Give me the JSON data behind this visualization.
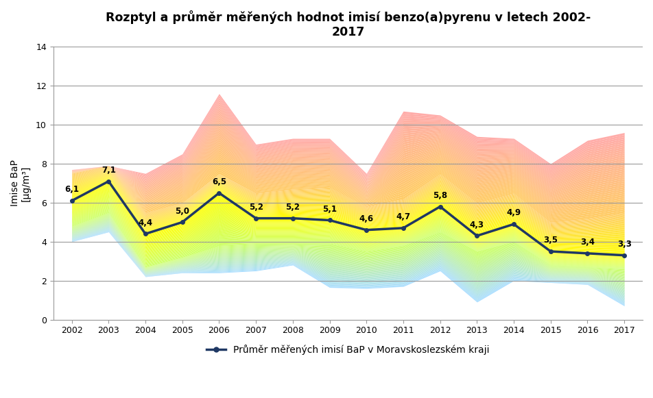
{
  "title": "Rozptyl a průměr měřených hodnot imisí benzo(a)pyrenu v letech 2002-\n2017",
  "ylabel": "Imise BaP\n[μg/m³]",
  "years": [
    2002,
    2003,
    2004,
    2005,
    2006,
    2007,
    2008,
    2009,
    2010,
    2011,
    2012,
    2013,
    2014,
    2015,
    2016,
    2017
  ],
  "mean": [
    6.1,
    7.1,
    4.4,
    5.0,
    6.5,
    5.2,
    5.2,
    5.1,
    4.6,
    4.7,
    5.8,
    4.3,
    4.9,
    3.5,
    3.4,
    3.3
  ],
  "pmin": [
    4.0,
    4.5,
    2.2,
    2.4,
    2.4,
    2.5,
    2.8,
    1.65,
    1.6,
    1.7,
    2.5,
    0.9,
    2.0,
    1.9,
    1.8,
    0.7
  ],
  "pmax": [
    7.7,
    7.9,
    7.5,
    8.5,
    11.6,
    9.0,
    9.3,
    9.3,
    7.5,
    10.7,
    10.5,
    9.4,
    9.3,
    8.0,
    9.2,
    9.6
  ],
  "p25": [
    4.8,
    5.5,
    2.7,
    3.2,
    3.8,
    3.9,
    3.9,
    3.9,
    3.5,
    3.8,
    4.5,
    3.5,
    4.0,
    2.8,
    2.7,
    2.6
  ],
  "p75": [
    7.5,
    7.9,
    5.5,
    6.0,
    7.5,
    6.5,
    6.7,
    6.8,
    5.8,
    6.2,
    7.5,
    6.0,
    6.5,
    5.0,
    5.2,
    5.5
  ],
  "mean_labels": [
    "6,1",
    "7,1",
    "4,4",
    "5,0",
    "6,5",
    "5,2",
    "5,2",
    "5,1",
    "4,6",
    "4,7",
    "5,8",
    "4,3",
    "4,9",
    "3,5",
    "3,4",
    "3,3"
  ],
  "line_color": "#1f3864",
  "legend_label": "Průměr měřených imisí BaP v Moravskoslezském kraji",
  "ylim": [
    0,
    14
  ],
  "yticks": [
    0,
    2,
    4,
    6,
    8,
    10,
    12,
    14
  ],
  "background_color": "#ffffff",
  "color_min": "#aaddff",
  "color_p25": "#bbff88",
  "color_mean_low": "#eeff44",
  "color_p75": "#ffcc66",
  "color_max": "#ffaaaa"
}
